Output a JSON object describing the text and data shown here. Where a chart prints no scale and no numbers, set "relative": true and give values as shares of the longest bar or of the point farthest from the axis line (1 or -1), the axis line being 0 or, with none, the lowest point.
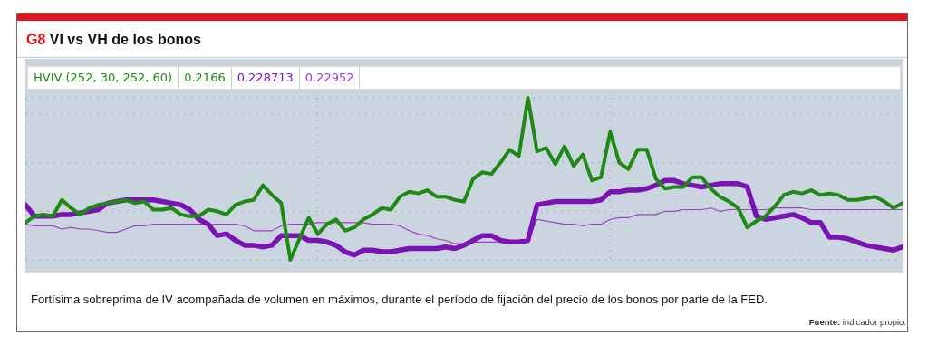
{
  "chart_data": {
    "type": "line",
    "title": "G8 VI vs VH de los bonos",
    "relative": true,
    "grid": true,
    "legend": "top left",
    "marker": "none",
    "line_style": "solid",
    "legend_title": "HVIV (252, 30, 252, 60)",
    "annotations": [
      "Fortísima sobreprima de IV acompañada de volumen en máximos, durante el período de fijación del precio de los bonos por parte de la FED.",
      "Fuente: indicador propio."
    ],
    "categories": [
      null,
      null,
      null,
      null,
      null,
      null,
      null,
      null,
      null,
      null,
      null,
      null,
      null,
      null,
      null,
      null,
      null,
      null,
      null,
      null,
      null,
      null,
      null,
      null,
      null,
      null,
      null,
      null,
      null,
      null,
      null,
      null,
      null,
      null,
      null,
      null,
      null,
      null,
      null,
      null,
      null,
      null,
      null,
      null,
      null,
      null,
      null,
      null,
      null,
      null,
      null,
      null,
      null,
      null,
      null,
      null,
      null,
      null,
      null,
      null,
      null,
      null,
      null,
      null,
      null,
      null,
      null,
      null,
      null,
      null,
      null,
      null,
      null,
      null,
      null,
      null,
      null,
      null,
      null,
      null,
      null,
      null,
      null,
      null,
      null,
      null,
      null,
      null,
      null,
      null,
      null,
      null,
      null,
      null,
      null,
      null,
      null
    ],
    "series": [
      {
        "name": "0.2166",
        "color": "#1e8a14",
        "values": [
          0.23,
          0.27,
          0.28,
          0.27,
          0.37,
          0.32,
          0.28,
          0.32,
          0.34,
          0.35,
          0.36,
          0.37,
          0.35,
          0.36,
          0.31,
          0.31,
          0.32,
          0.28,
          0.27,
          0.27,
          0.31,
          0.3,
          0.28,
          0.34,
          0.36,
          0.37,
          0.46,
          0.4,
          0.35,
          0,
          0.13,
          0.26,
          0.16,
          0.22,
          0.25,
          0.18,
          0.2,
          0.25,
          0.28,
          0.32,
          0.31,
          0.39,
          0.42,
          0.41,
          0.43,
          0.39,
          0.39,
          0.37,
          0.36,
          0.5,
          0.54,
          0.53,
          0.6,
          0.68,
          0.64,
          1,
          0.67,
          0.69,
          0.59,
          0.7,
          0.58,
          0.65,
          0.49,
          0.51,
          0.79,
          0.6,
          0.56,
          0.68,
          0.68,
          0.5,
          0.44,
          0.45,
          0.45,
          0.51,
          0.51,
          0.44,
          0.39,
          0.36,
          0.32,
          0.2,
          0.24,
          0.27,
          0.33,
          0.4,
          0.42,
          0.41,
          0.43,
          0.4,
          0.41,
          0.4,
          0.37,
          0.37,
          0.38,
          0.39,
          0.36,
          0.32,
          0.35
        ]
      },
      {
        "name": "0.228713",
        "color": "#7b12b4",
        "values": [
          0.34,
          0.27,
          0.27,
          0.27,
          0.28,
          0.28,
          0.29,
          0.3,
          0.31,
          0.35,
          0.36,
          0.37,
          0.37,
          0.37,
          0.37,
          0.36,
          0.35,
          0.34,
          0.31,
          0.25,
          0.22,
          0.15,
          0.16,
          0.12,
          0.09,
          0.09,
          0.08,
          0.09,
          0.15,
          0.15,
          0.15,
          0.12,
          0.12,
          0.11,
          0.09,
          0.05,
          0.03,
          0.06,
          0.06,
          0.05,
          0.05,
          0.06,
          0.07,
          0.07,
          0.07,
          0.07,
          0.08,
          0.07,
          0.09,
          0.12,
          0.15,
          0.15,
          0.12,
          0.11,
          0.11,
          0.12,
          0.34,
          0.35,
          0.36,
          0.36,
          0.36,
          0.36,
          0.36,
          0.37,
          0.42,
          0.42,
          0.43,
          0.43,
          0.44,
          0.46,
          0.49,
          0.49,
          0.47,
          0.46,
          0.45,
          0.46,
          0.47,
          0.47,
          0.47,
          0.45,
          0.27,
          0.25,
          0.26,
          0.27,
          0.28,
          0.26,
          0.23,
          0.23,
          0.14,
          0.14,
          0.13,
          0.11,
          0.09,
          0.08,
          0.07,
          0.06,
          0.08
        ]
      },
      {
        "name": "0.22952",
        "color": "#a040c8",
        "values": [
          0.22,
          0.21,
          0.21,
          0.21,
          0.19,
          0.2,
          0.19,
          0.19,
          0.18,
          0.17,
          0.17,
          0.19,
          0.21,
          0.21,
          0.22,
          0.22,
          0.22,
          0.22,
          0.22,
          0.22,
          0.22,
          0.22,
          0.22,
          0.22,
          0.21,
          0.18,
          0.18,
          0.18,
          0.21,
          0.22,
          0.22,
          0.22,
          0.23,
          0.23,
          0.23,
          0.23,
          0.23,
          0.23,
          0.22,
          0.22,
          0.22,
          0.21,
          0.18,
          0.16,
          0.15,
          0.13,
          0.12,
          0.1,
          0.1,
          0.11,
          0.11,
          0.11,
          0.11,
          0.12,
          0.12,
          0.12,
          0.25,
          0.24,
          0.23,
          0.22,
          0.22,
          0.21,
          0.22,
          0.22,
          0.25,
          0.26,
          0.26,
          0.28,
          0.28,
          0.28,
          0.3,
          0.3,
          0.31,
          0.31,
          0.31,
          0.32,
          0.3,
          0.31,
          0.31,
          0.31,
          0.31,
          0.31,
          0.32,
          0.32,
          0.32,
          0.32,
          0.31,
          0.31,
          0.31,
          0.31,
          0.31,
          0.31,
          0.31,
          0.31,
          0.31,
          0.31,
          0.31
        ]
      }
    ]
  }
}
